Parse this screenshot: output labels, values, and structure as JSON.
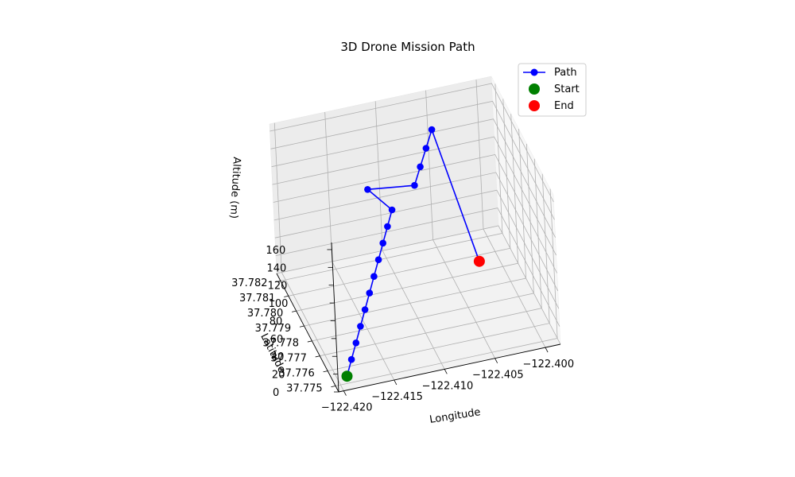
{
  "chart_data": {
    "type": "line",
    "subtype": "3d-line",
    "title": "3D Drone Mission Path",
    "xlabel": "Longitude",
    "ylabel": "Latitude",
    "zlabel": "Altitude (m)",
    "x_ticks": [
      "−122.420",
      "−122.415",
      "−122.410",
      "−122.405",
      "−122.400"
    ],
    "y_ticks": [
      "37.775",
      "37.776",
      "37.777",
      "37.778",
      "37.779",
      "37.780",
      "37.781",
      "37.782"
    ],
    "z_ticks": [
      "0",
      "20",
      "40",
      "60",
      "80",
      "100",
      "120",
      "140",
      "160"
    ],
    "xlim": [
      -122.4205,
      -122.3985
    ],
    "ylim": [
      37.7746,
      37.7825
    ],
    "zlim": [
      0,
      168
    ],
    "grid": true,
    "legend_position": "top-right",
    "legend": [
      {
        "label": "Path",
        "color": "#0000ff",
        "marker": "line-circle"
      },
      {
        "label": "Start",
        "color": "#008000",
        "marker": "circle"
      },
      {
        "label": "End",
        "color": "#ff0000",
        "marker": "circle"
      }
    ],
    "series": [
      {
        "name": "Path",
        "color": "#0000ff",
        "points": [
          {
            "x": -122.4194,
            "y": 37.7749,
            "z": 10
          },
          {
            "x": -122.4186,
            "y": 37.7753,
            "z": 20
          },
          {
            "x": -122.4178,
            "y": 37.7757,
            "z": 30
          },
          {
            "x": -122.417,
            "y": 37.7761,
            "z": 40
          },
          {
            "x": -122.4162,
            "y": 37.7765,
            "z": 50
          },
          {
            "x": -122.4154,
            "y": 37.7769,
            "z": 60
          },
          {
            "x": -122.4146,
            "y": 37.7773,
            "z": 70
          },
          {
            "x": -122.4138,
            "y": 37.7777,
            "z": 80
          },
          {
            "x": -122.413,
            "y": 37.7781,
            "z": 90
          },
          {
            "x": -122.4122,
            "y": 37.7785,
            "z": 100
          },
          {
            "x": -122.4114,
            "y": 37.7789,
            "z": 110
          },
          {
            "x": -122.413,
            "y": 37.7799,
            "z": 120
          },
          {
            "x": -122.409,
            "y": 37.779,
            "z": 130
          },
          {
            "x": -122.408,
            "y": 37.7795,
            "z": 140
          },
          {
            "x": -122.407,
            "y": 37.78,
            "z": 150
          },
          {
            "x": -122.406,
            "y": 37.7805,
            "z": 160
          },
          {
            "x": -122.403,
            "y": 37.779,
            "z": 30
          }
        ]
      }
    ],
    "start": {
      "x": -122.4194,
      "y": 37.7749,
      "z": 10,
      "color": "#008000"
    },
    "end": {
      "x": -122.403,
      "y": 37.779,
      "z": 30,
      "color": "#ff0000"
    }
  }
}
